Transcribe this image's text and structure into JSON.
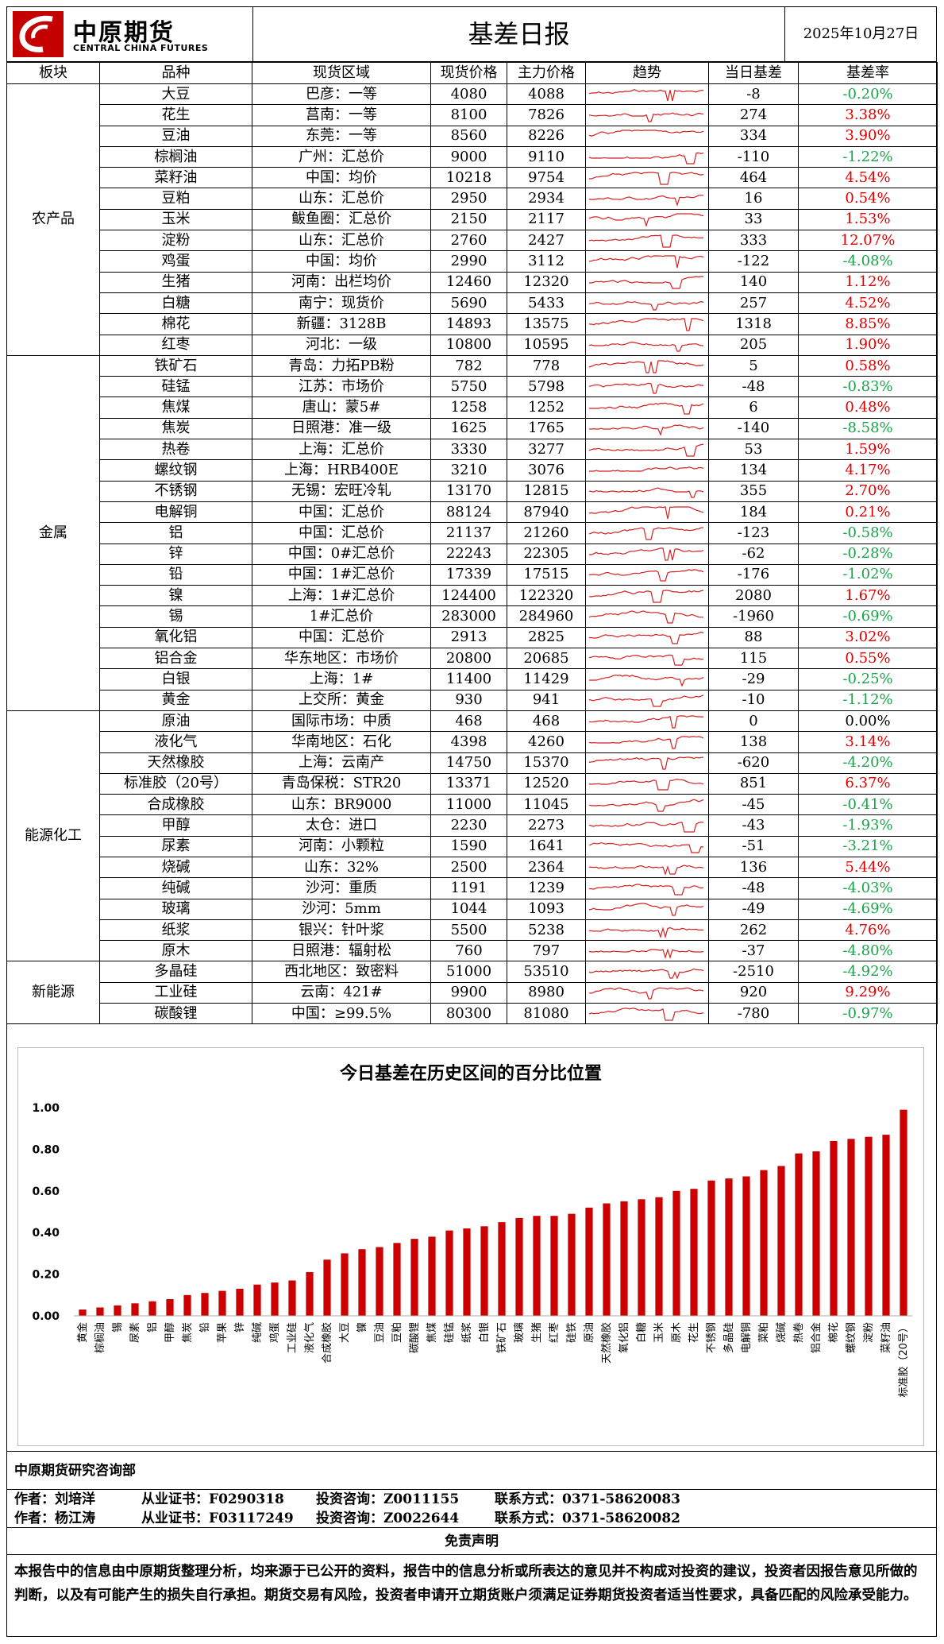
{
  "header": {
    "logo_cn": "中原期货",
    "logo_en": "CENTRAL CHINA FUTURES",
    "title": "基差日报",
    "date": "2025年10月27日"
  },
  "columns": [
    "板块",
    "品种",
    "现货区域",
    "现货价格",
    "主力价格",
    "趋势",
    "当日基差",
    "基差率"
  ],
  "colors": {
    "positive": "#e00000",
    "negative": "#1aa34a",
    "neutral": "#000000",
    "bar": "#cc0000",
    "trend": "#d42020"
  },
  "sectors": [
    {
      "name": "农产品",
      "rows": [
        {
          "product": "大豆",
          "region": "巴彦：一等",
          "spot": "4080",
          "main": "4088",
          "basis": "-8",
          "rate": "-0.20%",
          "sign": "neg"
        },
        {
          "product": "花生",
          "region": "莒南：一等",
          "spot": "8100",
          "main": "7826",
          "basis": "274",
          "rate": "3.38%",
          "sign": "pos"
        },
        {
          "product": "豆油",
          "region": "东莞：一等",
          "spot": "8560",
          "main": "8226",
          "basis": "334",
          "rate": "3.90%",
          "sign": "pos"
        },
        {
          "product": "棕榈油",
          "region": "广州：汇总价",
          "spot": "9000",
          "main": "9110",
          "basis": "-110",
          "rate": "-1.22%",
          "sign": "neg"
        },
        {
          "product": "菜籽油",
          "region": "中国：均价",
          "spot": "10218",
          "main": "9754",
          "basis": "464",
          "rate": "4.54%",
          "sign": "pos"
        },
        {
          "product": "豆粕",
          "region": "山东：汇总价",
          "spot": "2950",
          "main": "2934",
          "basis": "16",
          "rate": "0.54%",
          "sign": "pos"
        },
        {
          "product": "玉米",
          "region": "鲅鱼圈：汇总价",
          "spot": "2150",
          "main": "2117",
          "basis": "33",
          "rate": "1.53%",
          "sign": "pos"
        },
        {
          "product": "淀粉",
          "region": "山东：汇总价",
          "spot": "2760",
          "main": "2427",
          "basis": "333",
          "rate": "12.07%",
          "sign": "pos"
        },
        {
          "product": "鸡蛋",
          "region": "中国：均价",
          "spot": "2990",
          "main": "3112",
          "basis": "-122",
          "rate": "-4.08%",
          "sign": "neg"
        },
        {
          "product": "生猪",
          "region": "河南：出栏均价",
          "spot": "12460",
          "main": "12320",
          "basis": "140",
          "rate": "1.12%",
          "sign": "pos"
        },
        {
          "product": "白糖",
          "region": "南宁：现货价",
          "spot": "5690",
          "main": "5433",
          "basis": "257",
          "rate": "4.52%",
          "sign": "pos"
        },
        {
          "product": "棉花",
          "region": "新疆：3128B",
          "spot": "14893",
          "main": "13575",
          "basis": "1318",
          "rate": "8.85%",
          "sign": "pos"
        },
        {
          "product": "红枣",
          "region": "河北：一级",
          "spot": "10800",
          "main": "10595",
          "basis": "205",
          "rate": "1.90%",
          "sign": "pos"
        }
      ]
    },
    {
      "name": "金属",
      "rows": [
        {
          "product": "铁矿石",
          "region": "青岛：力拓PB粉",
          "spot": "782",
          "main": "778",
          "basis": "5",
          "rate": "0.58%",
          "sign": "pos"
        },
        {
          "product": "硅锰",
          "region": "江苏：市场价",
          "spot": "5750",
          "main": "5798",
          "basis": "-48",
          "rate": "-0.83%",
          "sign": "neg"
        },
        {
          "product": "焦煤",
          "region": "唐山：蒙5#",
          "spot": "1258",
          "main": "1252",
          "basis": "6",
          "rate": "0.48%",
          "sign": "pos"
        },
        {
          "product": "焦炭",
          "region": "日照港：准一级",
          "spot": "1625",
          "main": "1765",
          "basis": "-140",
          "rate": "-8.58%",
          "sign": "neg"
        },
        {
          "product": "热卷",
          "region": "上海：汇总价",
          "spot": "3330",
          "main": "3277",
          "basis": "53",
          "rate": "1.59%",
          "sign": "pos"
        },
        {
          "product": "螺纹钢",
          "region": "上海：HRB400E",
          "spot": "3210",
          "main": "3076",
          "basis": "134",
          "rate": "4.17%",
          "sign": "pos"
        },
        {
          "product": "不锈钢",
          "region": "无锡：宏旺冷轧",
          "spot": "13170",
          "main": "12815",
          "basis": "355",
          "rate": "2.70%",
          "sign": "pos"
        },
        {
          "product": "电解铜",
          "region": "中国：汇总价",
          "spot": "88124",
          "main": "87940",
          "basis": "184",
          "rate": "0.21%",
          "sign": "pos"
        },
        {
          "product": "铝",
          "region": "中国：汇总价",
          "spot": "21137",
          "main": "21260",
          "basis": "-123",
          "rate": "-0.58%",
          "sign": "neg"
        },
        {
          "product": "锌",
          "region": "中国：0#汇总价",
          "spot": "22243",
          "main": "22305",
          "basis": "-62",
          "rate": "-0.28%",
          "sign": "neg"
        },
        {
          "product": "铅",
          "region": "中国：1#汇总价",
          "spot": "17339",
          "main": "17515",
          "basis": "-176",
          "rate": "-1.02%",
          "sign": "neg"
        },
        {
          "product": "镍",
          "region": "上海：1#汇总价",
          "spot": "124400",
          "main": "122320",
          "basis": "2080",
          "rate": "1.67%",
          "sign": "pos"
        },
        {
          "product": "锡",
          "region": "1#汇总价",
          "spot": "283000",
          "main": "284960",
          "basis": "-1960",
          "rate": "-0.69%",
          "sign": "neg"
        },
        {
          "product": "氧化铝",
          "region": "中国：汇总价",
          "spot": "2913",
          "main": "2825",
          "basis": "88",
          "rate": "3.02%",
          "sign": "pos"
        },
        {
          "product": "铝合金",
          "region": "华东地区：市场价",
          "spot": "20800",
          "main": "20685",
          "basis": "115",
          "rate": "0.55%",
          "sign": "pos"
        },
        {
          "product": "白银",
          "region": "上海：1#",
          "spot": "11400",
          "main": "11429",
          "basis": "-29",
          "rate": "-0.25%",
          "sign": "neg"
        },
        {
          "product": "黄金",
          "region": "上交所：黄金",
          "spot": "930",
          "main": "941",
          "basis": "-10",
          "rate": "-1.12%",
          "sign": "neg"
        }
      ]
    },
    {
      "name": "能源化工",
      "rows": [
        {
          "product": "原油",
          "region": "国际市场：中质",
          "spot": "468",
          "main": "468",
          "basis": "0",
          "rate": "0.00%",
          "sign": "zero"
        },
        {
          "product": "液化气",
          "region": "华南地区：石化",
          "spot": "4398",
          "main": "4260",
          "basis": "138",
          "rate": "3.14%",
          "sign": "pos"
        },
        {
          "product": "天然橡胶",
          "region": "上海：云南产",
          "spot": "14750",
          "main": "15370",
          "basis": "-620",
          "rate": "-4.20%",
          "sign": "neg"
        },
        {
          "product": "标准胶（20号）",
          "region": "青岛保税：STR20",
          "spot": "13371",
          "main": "12520",
          "basis": "851",
          "rate": "6.37%",
          "sign": "pos"
        },
        {
          "product": "合成橡胶",
          "region": "山东：BR9000",
          "spot": "11000",
          "main": "11045",
          "basis": "-45",
          "rate": "-0.41%",
          "sign": "neg"
        },
        {
          "product": "甲醇",
          "region": "太仓：进口",
          "spot": "2230",
          "main": "2273",
          "basis": "-43",
          "rate": "-1.93%",
          "sign": "neg"
        },
        {
          "product": "尿素",
          "region": "河南：小颗粒",
          "spot": "1590",
          "main": "1641",
          "basis": "-51",
          "rate": "-3.21%",
          "sign": "neg"
        },
        {
          "product": "烧碱",
          "region": "山东：32%",
          "spot": "2500",
          "main": "2364",
          "basis": "136",
          "rate": "5.44%",
          "sign": "pos"
        },
        {
          "product": "纯碱",
          "region": "沙河：重质",
          "spot": "1191",
          "main": "1239",
          "basis": "-48",
          "rate": "-4.03%",
          "sign": "neg"
        },
        {
          "product": "玻璃",
          "region": "沙河：5mm",
          "spot": "1044",
          "main": "1093",
          "basis": "-49",
          "rate": "-4.69%",
          "sign": "neg"
        },
        {
          "product": "纸浆",
          "region": "银兴：针叶浆",
          "spot": "5500",
          "main": "5238",
          "basis": "262",
          "rate": "4.76%",
          "sign": "pos"
        },
        {
          "product": "原木",
          "region": "日照港：辐射松",
          "spot": "760",
          "main": "797",
          "basis": "-37",
          "rate": "-4.80%",
          "sign": "neg"
        }
      ]
    },
    {
      "name": "新能源",
      "rows": [
        {
          "product": "多晶硅",
          "region": "西北地区：致密料",
          "spot": "51000",
          "main": "53510",
          "basis": "-2510",
          "rate": "-4.92%",
          "sign": "neg"
        },
        {
          "product": "工业硅",
          "region": "云南：421#",
          "spot": "9900",
          "main": "8980",
          "basis": "920",
          "rate": "9.29%",
          "sign": "pos"
        },
        {
          "product": "碳酸锂",
          "region": "中国：≥99.5%",
          "spot": "80300",
          "main": "81080",
          "basis": "-780",
          "rate": "-0.97%",
          "sign": "neg"
        }
      ]
    }
  ],
  "chart_data": {
    "type": "bar",
    "title": "今日基差在历史区间的百分比位置",
    "xlabel": "",
    "ylabel": "",
    "ylim": [
      0,
      1
    ],
    "yticks": [
      "0.00",
      "0.20",
      "0.40",
      "0.60",
      "0.80",
      "1.00"
    ],
    "categories": [
      "黄金",
      "棕榈油",
      "锡",
      "尿素",
      "铝",
      "甲醇",
      "焦炭",
      "铅",
      "苹果",
      "锌",
      "纯碱",
      "鸡蛋",
      "工业硅",
      "液化气",
      "合成橡胶",
      "大豆",
      "镍",
      "豆油",
      "豆粕",
      "碳酸锂",
      "焦煤",
      "硅锰",
      "纸浆",
      "白银",
      "铁矿石",
      "玻璃",
      "生猪",
      "红枣",
      "硅铁",
      "原油",
      "天然橡胶",
      "氧化铝",
      "白糖",
      "玉米",
      "原木",
      "花生",
      "不锈钢",
      "多晶硅",
      "电解铜",
      "菜粕",
      "烧碱",
      "热卷",
      "铝合金",
      "棉花",
      "螺纹钢",
      "淀粉",
      "菜籽油",
      "标准胶（20号）"
    ],
    "values": [
      0.03,
      0.04,
      0.05,
      0.06,
      0.07,
      0.08,
      0.1,
      0.11,
      0.12,
      0.13,
      0.15,
      0.16,
      0.17,
      0.21,
      0.27,
      0.3,
      0.32,
      0.33,
      0.35,
      0.37,
      0.38,
      0.41,
      0.42,
      0.43,
      0.45,
      0.47,
      0.48,
      0.48,
      0.49,
      0.52,
      0.54,
      0.55,
      0.56,
      0.57,
      0.6,
      0.61,
      0.65,
      0.66,
      0.67,
      0.7,
      0.72,
      0.78,
      0.79,
      0.84,
      0.85,
      0.86,
      0.87,
      0.99
    ]
  },
  "footer": {
    "department": "中原期货研究咨询部",
    "authors": [
      {
        "name": "作者：刘培洋",
        "cert": "从业证书：F0290318",
        "consult": "投资咨询：Z0011155",
        "contact": "联系方式：0371-58620083"
      },
      {
        "name": "作者：杨江涛",
        "cert": "从业证书：F03117249",
        "consult": "投资咨询：Z0022644",
        "contact": "联系方式：0371-58620082"
      }
    ],
    "disclaimer_title": "免责声明",
    "disclaimer": "本报告中的信息由中原期货整理分析，均来源于已公开的资料，报告中的信息分析或所表达的意见并不构成对投资的建议，投资者因报告意见所做的判断，以及有可能产生的损失自行承担。期货交易有风险，投资者申请开立期货账户须满足证券期货投资者适当性要求，具备匹配的风险承受能力。"
  }
}
